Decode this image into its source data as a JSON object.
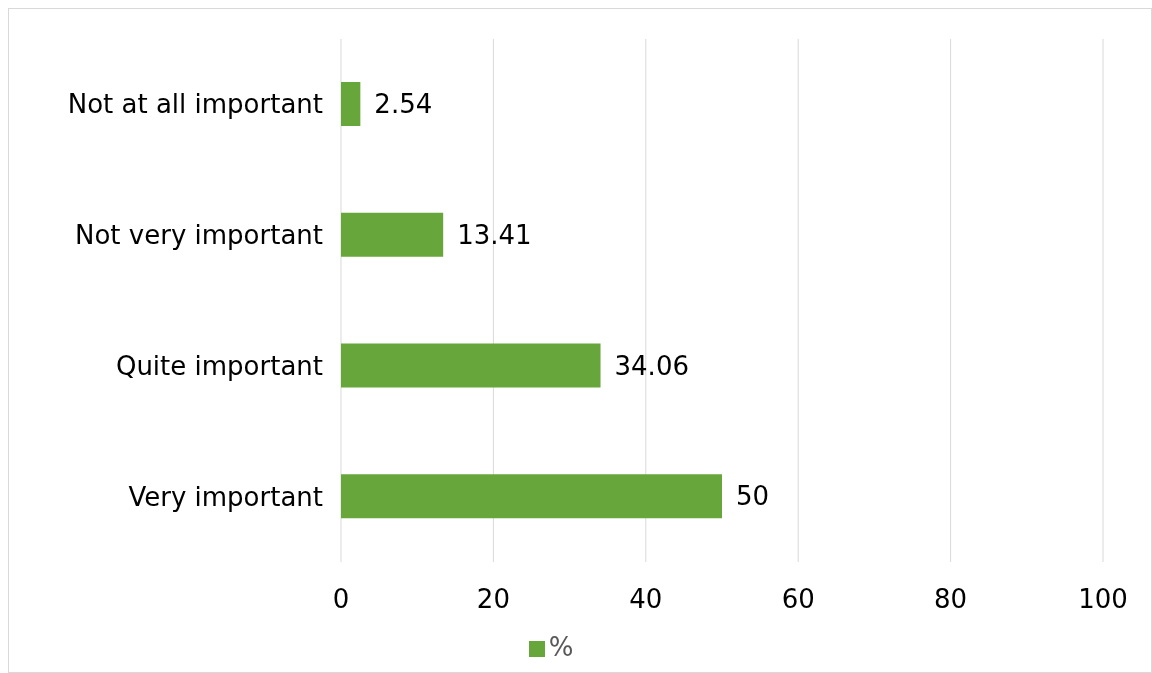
{
  "chart_data": {
    "type": "bar",
    "orientation": "horizontal",
    "categories": [
      "Not at all important",
      "Not very important",
      "Quite important",
      "Very important"
    ],
    "series": [
      {
        "name": "%",
        "color": "#67a63a",
        "values": [
          2.54,
          13.41,
          34.06,
          50
        ]
      }
    ],
    "xlim": [
      0,
      100
    ],
    "xticks": [
      0,
      20,
      40,
      60,
      80,
      100
    ],
    "grid": "x",
    "legend": "bottom",
    "data_labels": true
  }
}
